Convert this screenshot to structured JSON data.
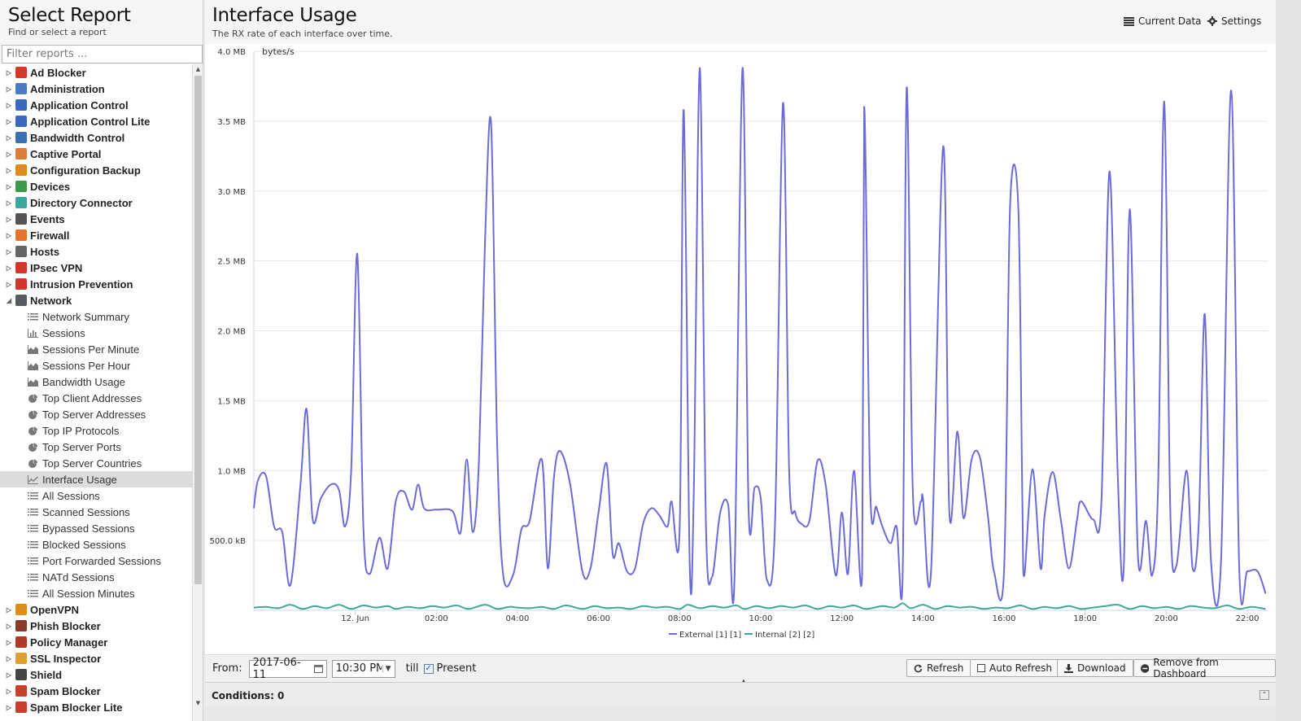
{
  "sidebar": {
    "title": "Select Report",
    "subtitle": "Find or select a report",
    "filter_placeholder": "Filter reports ...",
    "categories_top": [
      {
        "label": "Ad Blocker",
        "color": "#d9362b"
      },
      {
        "label": "Administration",
        "color": "#4a7ac8"
      },
      {
        "label": "Application Control",
        "color": "#3a68c0"
      },
      {
        "label": "Application Control Lite",
        "color": "#3a68c0"
      },
      {
        "label": "Bandwidth Control",
        "color": "#3b6fb2"
      },
      {
        "label": "Captive Portal",
        "color": "#e07a3a"
      },
      {
        "label": "Configuration Backup",
        "color": "#e08a1a"
      },
      {
        "label": "Devices",
        "color": "#3a9a4a"
      },
      {
        "label": "Directory Connector",
        "color": "#3aa8a0"
      },
      {
        "label": "Events",
        "color": "#555555"
      },
      {
        "label": "Firewall",
        "color": "#e8742a"
      },
      {
        "label": "Hosts",
        "color": "#666666"
      },
      {
        "label": "IPsec VPN",
        "color": "#d8332a"
      },
      {
        "label": "Intrusion Prevention",
        "color": "#d8332a"
      },
      {
        "label": "Network",
        "color": "#555a63"
      }
    ],
    "network_children": [
      {
        "label": "Network Summary",
        "icon": "list-icon"
      },
      {
        "label": "Sessions",
        "icon": "bar-chart-icon"
      },
      {
        "label": "Sessions Per Minute",
        "icon": "area-chart-icon"
      },
      {
        "label": "Sessions Per Hour",
        "icon": "area-chart-icon"
      },
      {
        "label": "Bandwidth Usage",
        "icon": "area-chart-icon"
      },
      {
        "label": "Top Client Addresses",
        "icon": "pie-chart-icon"
      },
      {
        "label": "Top Server Addresses",
        "icon": "pie-chart-icon"
      },
      {
        "label": "Top IP Protocols",
        "icon": "pie-chart-icon"
      },
      {
        "label": "Top Server Ports",
        "icon": "pie-chart-icon"
      },
      {
        "label": "Top Server Countries",
        "icon": "pie-chart-icon"
      },
      {
        "label": "Interface Usage",
        "icon": "line-chart-icon",
        "selected": true
      },
      {
        "label": "All Sessions",
        "icon": "list-icon"
      },
      {
        "label": "Scanned Sessions",
        "icon": "list-icon"
      },
      {
        "label": "Bypassed Sessions",
        "icon": "list-icon"
      },
      {
        "label": "Blocked Sessions",
        "icon": "list-icon"
      },
      {
        "label": "Port Forwarded Sessions",
        "icon": "list-icon"
      },
      {
        "label": "NATd Sessions",
        "icon": "list-icon"
      },
      {
        "label": "All Session Minutes",
        "icon": "list-icon"
      }
    ],
    "categories_bottom": [
      {
        "label": "OpenVPN",
        "color": "#e08a1a"
      },
      {
        "label": "Phish Blocker",
        "color": "#8a3a2a"
      },
      {
        "label": "Policy Manager",
        "color": "#b03a2a"
      },
      {
        "label": "SSL Inspector",
        "color": "#e0a030"
      },
      {
        "label": "Shield",
        "color": "#444444"
      },
      {
        "label": "Spam Blocker",
        "color": "#c8402a"
      },
      {
        "label": "Spam Blocker Lite",
        "color": "#c8402a"
      }
    ]
  },
  "report": {
    "title": "Interface Usage",
    "description": "The RX rate of each interface over time.",
    "current_data_label": "Current Data",
    "settings_label": "Settings"
  },
  "bottom_bar": {
    "from_label": "From:",
    "date_value": "2017-06-11",
    "time_value": "10:30 PM",
    "till_label": "till",
    "present_label": "Present",
    "present_checked": true,
    "refresh_label": "Refresh",
    "auto_refresh_label": "Auto Refresh",
    "download_label": "Download",
    "remove_label": "Remove from Dashboard"
  },
  "conditions_label": "Conditions: 0",
  "chart_data": {
    "type": "line",
    "title": "",
    "ylabel": "bytes/s",
    "xlabel": "",
    "ylim": [
      0,
      4000000
    ],
    "xlim": [
      -2.5,
      22.5
    ],
    "y_ticks": [
      {
        "value": 500000,
        "label": "500.0 kB"
      },
      {
        "value": 1000000,
        "label": "1.0 MB"
      },
      {
        "value": 1500000,
        "label": "1.5 MB"
      },
      {
        "value": 2000000,
        "label": "2.0 MB"
      },
      {
        "value": 2500000,
        "label": "2.5 MB"
      },
      {
        "value": 3000000,
        "label": "3.0 MB"
      },
      {
        "value": 3500000,
        "label": "3.5 MB"
      },
      {
        "value": 4000000,
        "label": "4.0 MB"
      }
    ],
    "x_ticks": [
      {
        "value": 0,
        "label": "12. Jun"
      },
      {
        "value": 2,
        "label": "02:00"
      },
      {
        "value": 4,
        "label": "04:00"
      },
      {
        "value": 6,
        "label": "06:00"
      },
      {
        "value": 8,
        "label": "08:00"
      },
      {
        "value": 10,
        "label": "10:00"
      },
      {
        "value": 12,
        "label": "12:00"
      },
      {
        "value": 14,
        "label": "14:00"
      },
      {
        "value": 16,
        "label": "16:00"
      },
      {
        "value": 18,
        "label": "18:00"
      },
      {
        "value": 20,
        "label": "20:00"
      },
      {
        "value": 22,
        "label": "22:00"
      }
    ],
    "legend_position": "bottom-center",
    "series": [
      {
        "name": "External [1] [1]",
        "color": "#6b6bd9",
        "points": [
          [
            -2.5,
            730000
          ],
          [
            -2.4,
            930000
          ],
          [
            -2.2,
            960000
          ],
          [
            -2.0,
            600000
          ],
          [
            -1.8,
            560000
          ],
          [
            -1.6,
            180000
          ],
          [
            -1.35,
            900000
          ],
          [
            -1.2,
            1440000
          ],
          [
            -1.05,
            650000
          ],
          [
            -0.85,
            800000
          ],
          [
            -0.6,
            900000
          ],
          [
            -0.4,
            860000
          ],
          [
            -0.25,
            600000
          ],
          [
            -0.1,
            1000000
          ],
          [
            0.05,
            2550000
          ],
          [
            0.2,
            600000
          ],
          [
            0.35,
            260000
          ],
          [
            0.6,
            520000
          ],
          [
            0.8,
            300000
          ],
          [
            1.0,
            780000
          ],
          [
            1.2,
            850000
          ],
          [
            1.4,
            720000
          ],
          [
            1.55,
            900000
          ],
          [
            1.7,
            730000
          ],
          [
            2.0,
            720000
          ],
          [
            2.4,
            710000
          ],
          [
            2.6,
            560000
          ],
          [
            2.75,
            1080000
          ],
          [
            2.9,
            560000
          ],
          [
            3.05,
            1060000
          ],
          [
            3.2,
            2640000
          ],
          [
            3.35,
            3480000
          ],
          [
            3.5,
            1200000
          ],
          [
            3.65,
            250000
          ],
          [
            3.9,
            260000
          ],
          [
            4.1,
            580000
          ],
          [
            4.3,
            640000
          ],
          [
            4.6,
            1080000
          ],
          [
            4.75,
            300000
          ],
          [
            4.9,
            950000
          ],
          [
            5.05,
            1140000
          ],
          [
            5.3,
            900000
          ],
          [
            5.6,
            280000
          ],
          [
            5.8,
            300000
          ],
          [
            6.0,
            700000
          ],
          [
            6.2,
            1050000
          ],
          [
            6.35,
            400000
          ],
          [
            6.5,
            480000
          ],
          [
            6.7,
            280000
          ],
          [
            6.9,
            300000
          ],
          [
            7.1,
            620000
          ],
          [
            7.3,
            730000
          ],
          [
            7.5,
            680000
          ],
          [
            7.7,
            600000
          ],
          [
            7.8,
            780000
          ],
          [
            8.0,
            580000
          ],
          [
            8.1,
            3580000
          ],
          [
            8.25,
            300000
          ],
          [
            8.35,
            880000
          ],
          [
            8.5,
            3880000
          ],
          [
            8.65,
            600000
          ],
          [
            8.8,
            240000
          ],
          [
            9.0,
            700000
          ],
          [
            9.2,
            750000
          ],
          [
            9.35,
            200000
          ],
          [
            9.55,
            3880000
          ],
          [
            9.7,
            730000
          ],
          [
            9.85,
            880000
          ],
          [
            10.0,
            800000
          ],
          [
            10.15,
            220000
          ],
          [
            10.35,
            600000
          ],
          [
            10.55,
            3630000
          ],
          [
            10.7,
            1000000
          ],
          [
            10.85,
            700000
          ],
          [
            11.0,
            620000
          ],
          [
            11.2,
            640000
          ],
          [
            11.4,
            1070000
          ],
          [
            11.6,
            900000
          ],
          [
            11.85,
            250000
          ],
          [
            12.0,
            700000
          ],
          [
            12.15,
            260000
          ],
          [
            12.3,
            1000000
          ],
          [
            12.5,
            270000
          ],
          [
            12.55,
            3600000
          ],
          [
            12.7,
            850000
          ],
          [
            12.85,
            740000
          ],
          [
            13.0,
            600000
          ],
          [
            13.2,
            480000
          ],
          [
            13.35,
            600000
          ],
          [
            13.5,
            250000
          ],
          [
            13.6,
            3740000
          ],
          [
            13.75,
            850000
          ],
          [
            13.95,
            780000
          ],
          [
            14.0,
            800000
          ],
          [
            14.2,
            280000
          ],
          [
            14.5,
            3320000
          ],
          [
            14.65,
            700000
          ],
          [
            14.85,
            1280000
          ],
          [
            15.0,
            660000
          ],
          [
            15.2,
            1080000
          ],
          [
            15.4,
            1100000
          ],
          [
            15.6,
            680000
          ],
          [
            15.75,
            280000
          ],
          [
            16.0,
            280000
          ],
          [
            16.15,
            2900000
          ],
          [
            16.35,
            2890000
          ],
          [
            16.45,
            800000
          ],
          [
            16.5,
            250000
          ],
          [
            16.7,
            1010000
          ],
          [
            16.9,
            300000
          ],
          [
            17.0,
            680000
          ],
          [
            17.2,
            990000
          ],
          [
            17.4,
            650000
          ],
          [
            17.6,
            300000
          ],
          [
            17.8,
            650000
          ],
          [
            17.9,
            780000
          ],
          [
            18.2,
            650000
          ],
          [
            18.4,
            780000
          ],
          [
            18.6,
            3140000
          ],
          [
            18.8,
            1000000
          ],
          [
            18.95,
            300000
          ],
          [
            19.1,
            2870000
          ],
          [
            19.3,
            400000
          ],
          [
            19.5,
            640000
          ],
          [
            19.65,
            250000
          ],
          [
            19.8,
            900000
          ],
          [
            19.95,
            3640000
          ],
          [
            20.1,
            700000
          ],
          [
            20.25,
            320000
          ],
          [
            20.5,
            1000000
          ],
          [
            20.65,
            300000
          ],
          [
            20.8,
            620000
          ],
          [
            20.95,
            2120000
          ],
          [
            21.1,
            370000
          ],
          [
            21.35,
            350000
          ],
          [
            21.6,
            3720000
          ],
          [
            21.8,
            300000
          ],
          [
            22.0,
            280000
          ],
          [
            22.25,
            280000
          ],
          [
            22.45,
            120000
          ]
        ]
      },
      {
        "name": "Internal [2] [2]",
        "color": "#3fa89a",
        "points": [
          [
            -2.5,
            20000
          ],
          [
            -2.2,
            25000
          ],
          [
            -1.9,
            15000
          ],
          [
            -1.6,
            40000
          ],
          [
            -1.3,
            10000
          ],
          [
            -1.0,
            30000
          ],
          [
            -0.7,
            15000
          ],
          [
            -0.4,
            40000
          ],
          [
            -0.1,
            10000
          ],
          [
            0.2,
            35000
          ],
          [
            0.5,
            20000
          ],
          [
            0.8,
            30000
          ],
          [
            1.0,
            10000
          ],
          [
            1.3,
            25000
          ],
          [
            1.6,
            15000
          ],
          [
            1.9,
            30000
          ],
          [
            2.2,
            20000
          ],
          [
            2.5,
            35000
          ],
          [
            2.8,
            10000
          ],
          [
            3.2,
            40000
          ],
          [
            3.5,
            10000
          ],
          [
            3.8,
            25000
          ],
          [
            4.0,
            20000
          ],
          [
            4.3,
            15000
          ],
          [
            4.6,
            25000
          ],
          [
            4.9,
            10000
          ],
          [
            5.2,
            35000
          ],
          [
            5.6,
            10000
          ],
          [
            5.9,
            30000
          ],
          [
            6.2,
            15000
          ],
          [
            6.5,
            20000
          ],
          [
            6.8,
            10000
          ],
          [
            7.1,
            30000
          ],
          [
            7.4,
            20000
          ],
          [
            7.7,
            25000
          ],
          [
            8.0,
            10000
          ],
          [
            8.2,
            40000
          ],
          [
            8.5,
            15000
          ],
          [
            8.8,
            30000
          ],
          [
            9.1,
            20000
          ],
          [
            9.4,
            35000
          ],
          [
            9.6,
            10000
          ],
          [
            9.9,
            30000
          ],
          [
            10.2,
            15000
          ],
          [
            10.5,
            30000
          ],
          [
            10.8,
            20000
          ],
          [
            11.1,
            35000
          ],
          [
            11.4,
            10000
          ],
          [
            11.7,
            30000
          ],
          [
            12.0,
            20000
          ],
          [
            12.3,
            35000
          ],
          [
            12.6,
            10000
          ],
          [
            13.0,
            30000
          ],
          [
            13.3,
            20000
          ],
          [
            13.5,
            50000
          ],
          [
            13.7,
            15000
          ],
          [
            14.0,
            40000
          ],
          [
            14.3,
            10000
          ],
          [
            14.6,
            30000
          ],
          [
            14.9,
            20000
          ],
          [
            15.2,
            25000
          ],
          [
            15.5,
            10000
          ],
          [
            15.8,
            20000
          ],
          [
            16.1,
            15000
          ],
          [
            16.4,
            35000
          ],
          [
            16.7,
            10000
          ],
          [
            17.0,
            25000
          ],
          [
            17.3,
            15000
          ],
          [
            17.6,
            30000
          ],
          [
            17.9,
            10000
          ],
          [
            18.2,
            20000
          ],
          [
            18.5,
            30000
          ],
          [
            18.8,
            40000
          ],
          [
            19.1,
            10000
          ],
          [
            19.4,
            30000
          ],
          [
            19.7,
            15000
          ],
          [
            20.0,
            25000
          ],
          [
            20.3,
            10000
          ],
          [
            20.6,
            30000
          ],
          [
            20.9,
            20000
          ],
          [
            21.2,
            15000
          ],
          [
            21.5,
            35000
          ],
          [
            21.8,
            10000
          ],
          [
            22.1,
            25000
          ],
          [
            22.45,
            10000
          ]
        ]
      }
    ]
  }
}
